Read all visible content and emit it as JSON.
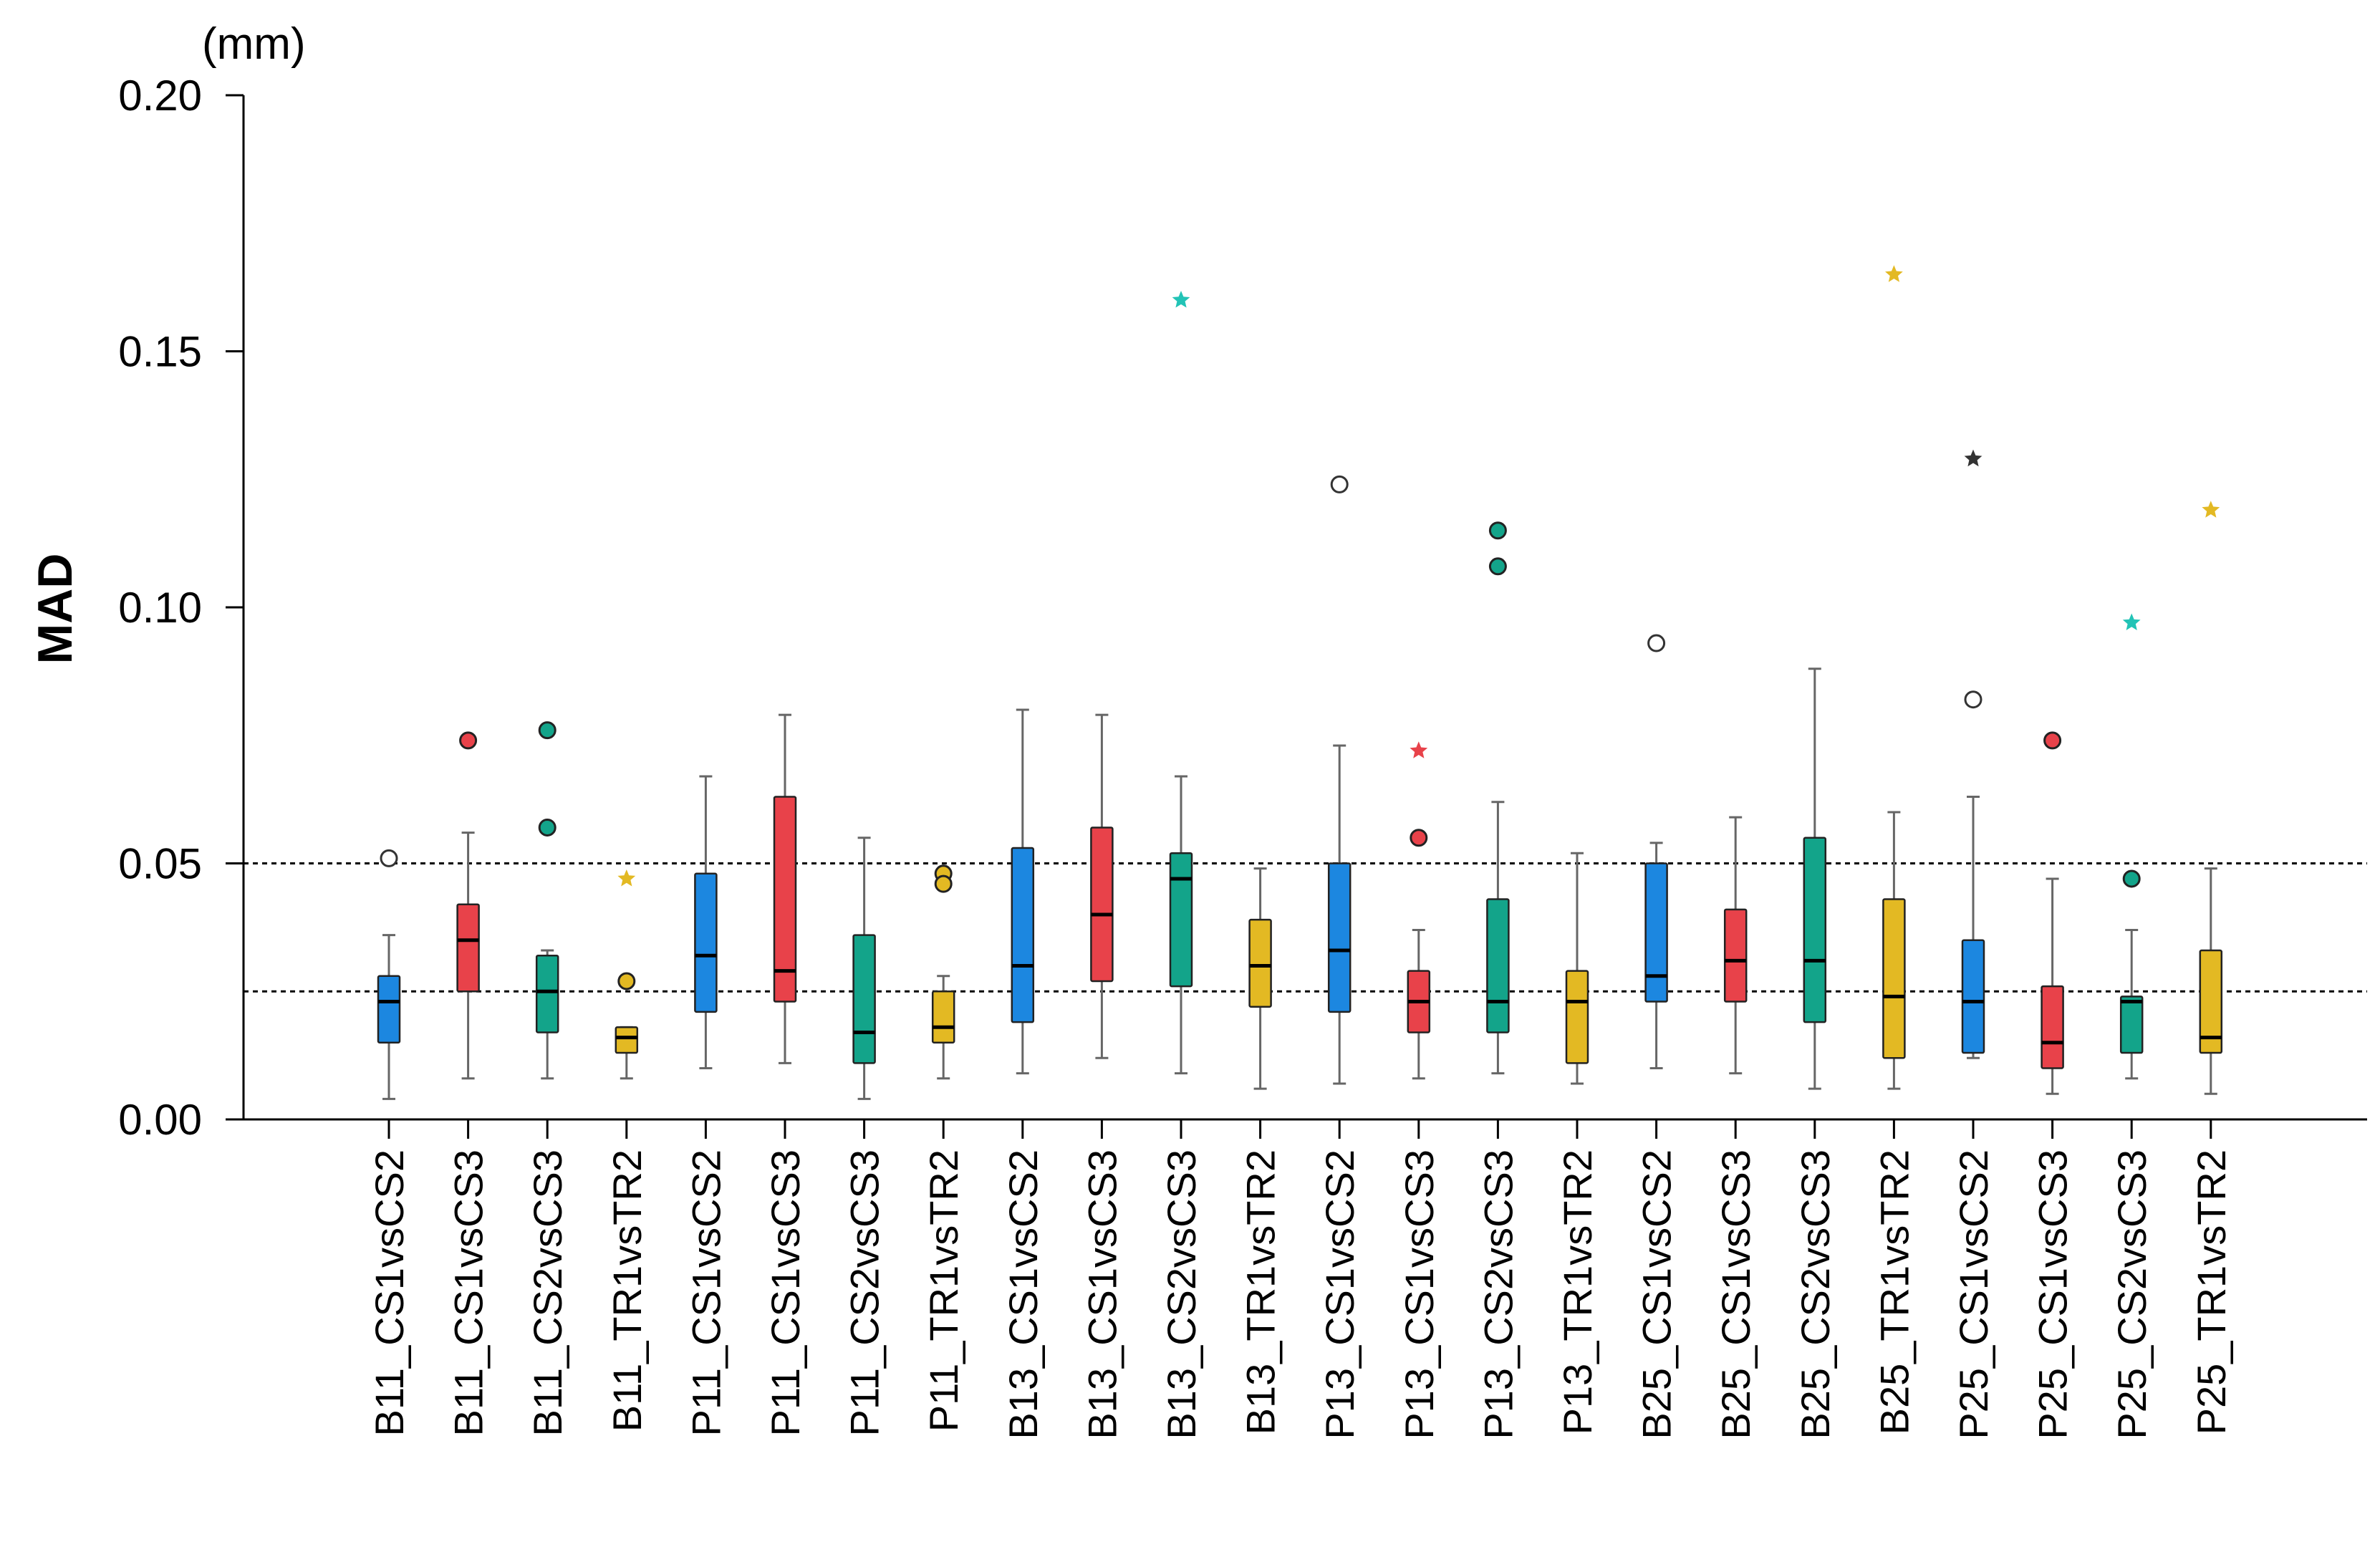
{
  "chart_data": {
    "type": "boxplot",
    "ylabel": "MAD",
    "yunit": "(mm)",
    "ylim": [
      0,
      0.2
    ],
    "yticks": [
      "0.00",
      "0.05",
      "0.10",
      "0.15",
      "0.20"
    ],
    "reference_lines": [
      0.025,
      0.05
    ],
    "colors": {
      "blue": "#1c87e0",
      "red": "#e8424a",
      "teal": "#13a48a",
      "yellow": "#e3b923",
      "outline": "#000000",
      "whisker": "#666666"
    },
    "groups": [
      {
        "label": "B11_CS1vsCS2",
        "color": "#1c87e0",
        "whisker_low": 0.004,
        "q1": 0.015,
        "median": 0.023,
        "q3": 0.028,
        "whisker_high": 0.036,
        "outliers": [
          {
            "value": 0.051,
            "marker": "circle-open"
          }
        ]
      },
      {
        "label": "B11_CS1vsCS3",
        "color": "#e8424a",
        "whisker_low": 0.008,
        "q1": 0.025,
        "median": 0.035,
        "q3": 0.042,
        "whisker_high": 0.056,
        "outliers": [
          {
            "value": 0.074,
            "marker": "circle-filled"
          }
        ]
      },
      {
        "label": "B11_CS2vsCS3",
        "color": "#13a48a",
        "whisker_low": 0.008,
        "q1": 0.017,
        "median": 0.025,
        "q3": 0.032,
        "whisker_high": 0.033,
        "outliers": [
          {
            "value": 0.076,
            "marker": "circle-filled"
          },
          {
            "value": 0.057,
            "marker": "circle-filled"
          }
        ]
      },
      {
        "label": "B11_TR1vsTR2",
        "color": "#e3b923",
        "whisker_low": 0.008,
        "q1": 0.013,
        "median": 0.016,
        "q3": 0.018,
        "whisker_high": 0.018,
        "outliers": [
          {
            "value": 0.047,
            "marker": "star",
            "color": "#e3b923"
          },
          {
            "value": 0.027,
            "marker": "circle-filled"
          }
        ]
      },
      {
        "label": "P11_CS1vsCS2",
        "color": "#1c87e0",
        "whisker_low": 0.01,
        "q1": 0.021,
        "median": 0.032,
        "q3": 0.048,
        "whisker_high": 0.067,
        "outliers": []
      },
      {
        "label": "P11_CS1vsCS3",
        "color": "#e8424a",
        "whisker_low": 0.011,
        "q1": 0.023,
        "median": 0.029,
        "q3": 0.063,
        "whisker_high": 0.079,
        "outliers": []
      },
      {
        "label": "P11_CS2vsCS3",
        "color": "#13a48a",
        "whisker_low": 0.004,
        "q1": 0.011,
        "median": 0.017,
        "q3": 0.036,
        "whisker_high": 0.055,
        "outliers": []
      },
      {
        "label": "P11_TR1vsTR2",
        "color": "#e3b923",
        "whisker_low": 0.008,
        "q1": 0.015,
        "median": 0.018,
        "q3": 0.025,
        "whisker_high": 0.028,
        "outliers": [
          {
            "value": 0.048,
            "marker": "circle-filled"
          },
          {
            "value": 0.046,
            "marker": "circle-filled"
          }
        ]
      },
      {
        "label": "B13_CS1vsCS2",
        "color": "#1c87e0",
        "whisker_low": 0.009,
        "q1": 0.019,
        "median": 0.03,
        "q3": 0.053,
        "whisker_high": 0.08,
        "outliers": []
      },
      {
        "label": "B13_CS1vsCS3",
        "color": "#e8424a",
        "whisker_low": 0.012,
        "q1": 0.027,
        "median": 0.04,
        "q3": 0.057,
        "whisker_high": 0.079,
        "outliers": []
      },
      {
        "label": "B13_CS2vsCS3",
        "color": "#13a48a",
        "whisker_low": 0.009,
        "q1": 0.026,
        "median": 0.047,
        "q3": 0.052,
        "whisker_high": 0.067,
        "outliers": [
          {
            "value": 0.16,
            "marker": "star",
            "color": "#22c3b6"
          }
        ]
      },
      {
        "label": "B13_TR1vsTR2",
        "color": "#e3b923",
        "whisker_low": 0.006,
        "q1": 0.022,
        "median": 0.03,
        "q3": 0.039,
        "whisker_high": 0.049,
        "outliers": []
      },
      {
        "label": "P13_CS1vsCS2",
        "color": "#1c87e0",
        "whisker_low": 0.007,
        "q1": 0.021,
        "median": 0.033,
        "q3": 0.05,
        "whisker_high": 0.073,
        "outliers": [
          {
            "value": 0.124,
            "marker": "circle-open"
          }
        ]
      },
      {
        "label": "P13_CS1vsCS3",
        "color": "#e8424a",
        "whisker_low": 0.008,
        "q1": 0.017,
        "median": 0.023,
        "q3": 0.029,
        "whisker_high": 0.037,
        "outliers": [
          {
            "value": 0.072,
            "marker": "star",
            "color": "#e8424a"
          },
          {
            "value": 0.055,
            "marker": "circle-filled"
          }
        ]
      },
      {
        "label": "P13_CS2vsCS3",
        "color": "#13a48a",
        "whisker_low": 0.009,
        "q1": 0.017,
        "median": 0.023,
        "q3": 0.043,
        "whisker_high": 0.062,
        "outliers": [
          {
            "value": 0.115,
            "marker": "circle-filled"
          },
          {
            "value": 0.108,
            "marker": "circle-filled"
          }
        ]
      },
      {
        "label": "P13_TR1vsTR2",
        "color": "#e3b923",
        "whisker_low": 0.007,
        "q1": 0.011,
        "median": 0.023,
        "q3": 0.029,
        "whisker_high": 0.052,
        "outliers": []
      },
      {
        "label": "B25_CS1vsCS2",
        "color": "#1c87e0",
        "whisker_low": 0.01,
        "q1": 0.023,
        "median": 0.028,
        "q3": 0.05,
        "whisker_high": 0.054,
        "outliers": [
          {
            "value": 0.093,
            "marker": "circle-open"
          }
        ]
      },
      {
        "label": "B25_CS1vsCS3",
        "color": "#e8424a",
        "whisker_low": 0.009,
        "q1": 0.023,
        "median": 0.031,
        "q3": 0.041,
        "whisker_high": 0.059,
        "outliers": []
      },
      {
        "label": "B25_CS2vsCS3",
        "color": "#13a48a",
        "whisker_low": 0.006,
        "q1": 0.019,
        "median": 0.031,
        "q3": 0.055,
        "whisker_high": 0.088,
        "outliers": []
      },
      {
        "label": "B25_TR1vsTR2",
        "color": "#e3b923",
        "whisker_low": 0.006,
        "q1": 0.012,
        "median": 0.024,
        "q3": 0.043,
        "whisker_high": 0.06,
        "outliers": [
          {
            "value": 0.165,
            "marker": "star",
            "color": "#e3b923"
          }
        ]
      },
      {
        "label": "P25_CS1vsCS2",
        "color": "#1c87e0",
        "whisker_low": 0.012,
        "q1": 0.013,
        "median": 0.023,
        "q3": 0.035,
        "whisker_high": 0.063,
        "outliers": [
          {
            "value": 0.129,
            "marker": "star",
            "color": "#333333"
          },
          {
            "value": 0.082,
            "marker": "circle-open"
          }
        ]
      },
      {
        "label": "P25_CS1vsCS3",
        "color": "#e8424a",
        "whisker_low": 0.005,
        "q1": 0.01,
        "median": 0.015,
        "q3": 0.026,
        "whisker_high": 0.047,
        "outliers": [
          {
            "value": 0.074,
            "marker": "circle-filled"
          }
        ]
      },
      {
        "label": "P25_CS2vsCS3",
        "color": "#13a48a",
        "whisker_low": 0.008,
        "q1": 0.013,
        "median": 0.023,
        "q3": 0.024,
        "whisker_high": 0.037,
        "outliers": [
          {
            "value": 0.097,
            "marker": "star",
            "color": "#22c3b6"
          },
          {
            "value": 0.047,
            "marker": "circle-filled"
          }
        ]
      },
      {
        "label": "P25_TR1vsTR2",
        "color": "#e3b923",
        "whisker_low": 0.005,
        "q1": 0.013,
        "median": 0.016,
        "q3": 0.033,
        "whisker_high": 0.049,
        "outliers": [
          {
            "value": 0.119,
            "marker": "star",
            "color": "#e3b923"
          }
        ]
      }
    ]
  }
}
